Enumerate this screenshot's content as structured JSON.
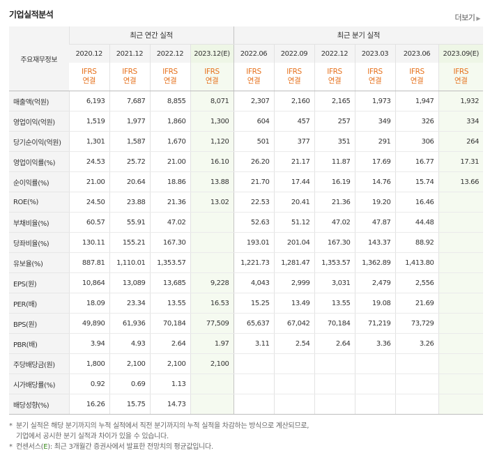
{
  "section": {
    "title": "기업실적분석",
    "more": "더보기"
  },
  "header": {
    "corner": "주요재무정보",
    "annual": "최근 연간 실적",
    "quarter": "최근 분기 실적",
    "periods": [
      "2020.12",
      "2021.12",
      "2022.12",
      "2023.12(E)",
      "2022.06",
      "2022.09",
      "2022.12",
      "2023.03",
      "2023.06",
      "2023.09(E)"
    ],
    "ifrs_top": "IFRS",
    "ifrs_bottom": "연결"
  },
  "rows": [
    {
      "label": "매출액(억원)",
      "values": [
        "6,193",
        "7,687",
        "8,855",
        "8,071",
        "2,307",
        "2,160",
        "2,165",
        "1,973",
        "1,947",
        "1,932"
      ]
    },
    {
      "label": "영업이익(억원)",
      "values": [
        "1,519",
        "1,977",
        "1,860",
        "1,300",
        "604",
        "457",
        "257",
        "349",
        "326",
        "334"
      ]
    },
    {
      "label": "당기순이익(억원)",
      "values": [
        "1,301",
        "1,587",
        "1,670",
        "1,120",
        "501",
        "377",
        "351",
        "291",
        "306",
        "264"
      ]
    },
    {
      "label": "영업이익률(%)",
      "values": [
        "24.53",
        "25.72",
        "21.00",
        "16.10",
        "26.20",
        "21.17",
        "11.87",
        "17.69",
        "16.77",
        "17.31"
      ]
    },
    {
      "label": "순이익률(%)",
      "values": [
        "21.00",
        "20.64",
        "18.86",
        "13.88",
        "21.70",
        "17.44",
        "16.19",
        "14.76",
        "15.74",
        "13.66"
      ]
    },
    {
      "label": "ROE(%)",
      "values": [
        "24.50",
        "23.88",
        "21.36",
        "13.02",
        "22.53",
        "20.41",
        "21.36",
        "19.20",
        "16.46",
        ""
      ]
    },
    {
      "label": "부채비율(%)",
      "values": [
        "60.57",
        "55.91",
        "47.02",
        "",
        "52.63",
        "51.12",
        "47.02",
        "47.87",
        "44.48",
        ""
      ]
    },
    {
      "label": "당좌비율(%)",
      "values": [
        "130.11",
        "155.21",
        "167.30",
        "",
        "193.01",
        "201.04",
        "167.30",
        "143.37",
        "88.92",
        ""
      ]
    },
    {
      "label": "유보율(%)",
      "values": [
        "887.81",
        "1,110.01",
        "1,353.57",
        "",
        "1,221.73",
        "1,281.47",
        "1,353.57",
        "1,362.89",
        "1,413.80",
        ""
      ]
    },
    {
      "label": "EPS(원)",
      "values": [
        "10,864",
        "13,089",
        "13,685",
        "9,228",
        "4,043",
        "2,999",
        "3,031",
        "2,479",
        "2,556",
        ""
      ]
    },
    {
      "label": "PER(배)",
      "values": [
        "18.09",
        "23.34",
        "13.55",
        "16.53",
        "15.25",
        "13.49",
        "13.55",
        "19.08",
        "21.69",
        ""
      ]
    },
    {
      "label": "BPS(원)",
      "values": [
        "49,890",
        "61,936",
        "70,184",
        "77,509",
        "65,637",
        "67,042",
        "70,184",
        "71,219",
        "73,729",
        ""
      ]
    },
    {
      "label": "PBR(배)",
      "values": [
        "3.94",
        "4.93",
        "2.64",
        "1.97",
        "3.11",
        "2.54",
        "2.64",
        "3.36",
        "3.26",
        ""
      ]
    },
    {
      "label": "주당배당금(원)",
      "values": [
        "1,800",
        "2,100",
        "2,100",
        "2,100",
        "",
        "",
        "",
        "",
        "",
        ""
      ]
    },
    {
      "label": "시가배당률(%)",
      "values": [
        "0.92",
        "0.69",
        "1.13",
        "",
        "",
        "",
        "",
        "",
        "",
        ""
      ]
    },
    {
      "label": "배당성향(%)",
      "values": [
        "16.26",
        "15.75",
        "14.73",
        "",
        "",
        "",
        "",
        "",
        "",
        ""
      ]
    }
  ],
  "notes": {
    "n1a": "분기 실적은 해당 분기까지의 누적 실적에서 직전 분기까지의 누적 실적을 차감하는 방식으로 계산되므로,",
    "n1b": "기업에서 공시한 분기 실적과 차이가 있을 수 있습니다.",
    "n2_pre": "컨센서스(",
    "n2_e": "E",
    "n2_post": "): 최근 3개월간 증권사에서 발표한 전망치의 평균값입니다.",
    "bullet": "*"
  },
  "colors": {
    "ifrs": "#e6711c",
    "estimate_bg": "#f5faf0",
    "label_bg": "#f4f4f4"
  }
}
